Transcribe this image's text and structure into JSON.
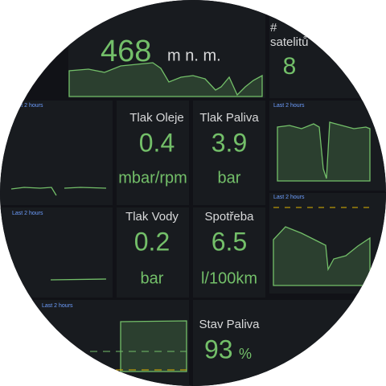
{
  "altitude": {
    "value": 468,
    "unit": "m n. m."
  },
  "satellites": {
    "title_hash": "#",
    "title": "satelitů",
    "value": 8
  },
  "time_range": "Last 2 hours",
  "stats": [
    {
      "title": "Tlak Oleje",
      "value": 0.4,
      "unit": "mbar/rpm"
    },
    {
      "title": "Tlak Paliva",
      "value": 3.9,
      "unit": "bar"
    },
    {
      "title": "Tlak Vody",
      "value": 0.2,
      "unit": "bar"
    },
    {
      "title": "Spotřeba",
      "value": 6.5,
      "unit": "l/100km"
    },
    {
      "title": "Stav Paliva",
      "value": 93,
      "unit": "%"
    }
  ]
}
